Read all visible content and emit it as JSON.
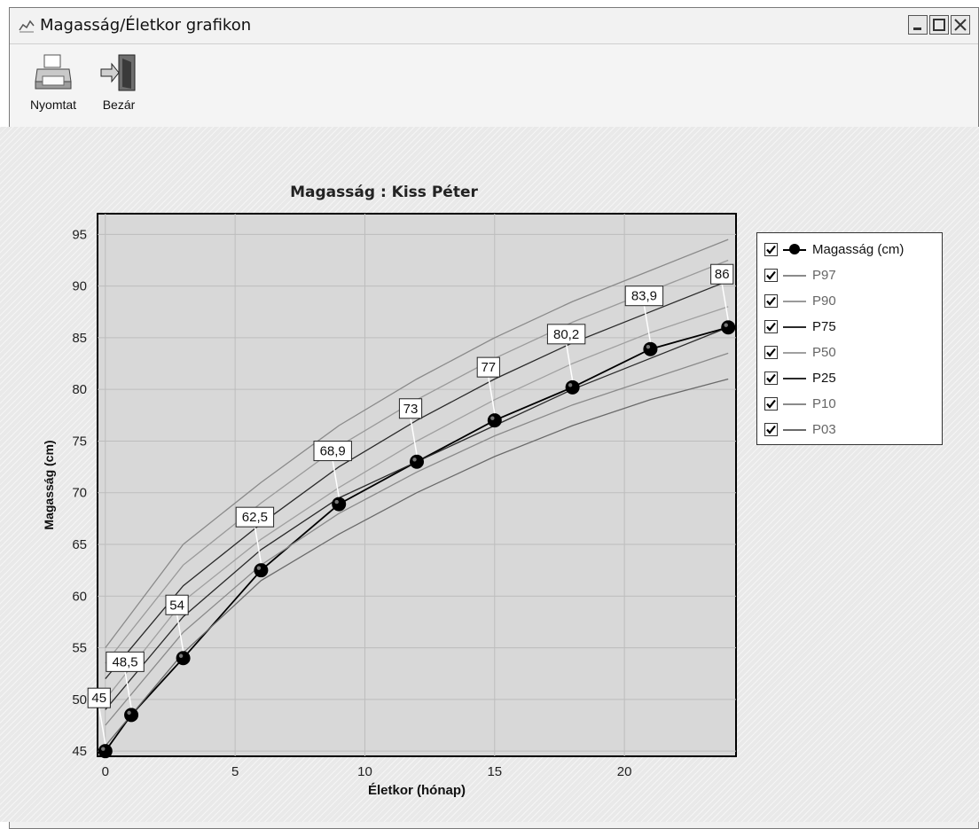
{
  "window": {
    "title": "Magasság/Életkor grafikon"
  },
  "toolbar": {
    "print_label": "Nyomtat",
    "close_label": "Bezár"
  },
  "chart_data": {
    "type": "line",
    "title": "Magasság : Kiss Péter",
    "xlabel": "Életkor (hónap)",
    "ylabel": "Magasság (cm)",
    "xlim": [
      -0.3,
      24.3
    ],
    "ylim": [
      44.5,
      97
    ],
    "xticks": [
      0,
      5,
      10,
      15,
      20
    ],
    "yticks": [
      45,
      50,
      55,
      60,
      65,
      70,
      75,
      80,
      85,
      90,
      95
    ],
    "grid": true,
    "legend_position": "right",
    "series": [
      {
        "name": "Magasság (cm)",
        "color": "#000000",
        "marker": "circle",
        "x": [
          0,
          1,
          3,
          6,
          9,
          12,
          15,
          18,
          21,
          24
        ],
        "y": [
          45,
          48.5,
          54,
          62.5,
          68.9,
          73,
          77,
          80.2,
          83.9,
          86
        ],
        "data_labels": [
          "45",
          "48,5",
          "54",
          "62,5",
          "68,9",
          "73",
          "77",
          "80,2",
          "83,9",
          "86"
        ]
      },
      {
        "name": "P97",
        "color": "#8a8a8a",
        "x": [
          0,
          3,
          6,
          9,
          12,
          15,
          18,
          21,
          24
        ],
        "y": [
          55,
          65,
          71,
          76.5,
          81,
          85,
          88.5,
          91.5,
          94.5
        ]
      },
      {
        "name": "P90",
        "color": "#9a9a9a",
        "x": [
          0,
          3,
          6,
          9,
          12,
          15,
          18,
          21,
          24
        ],
        "y": [
          53.5,
          63,
          69,
          74.5,
          79,
          83,
          86.5,
          89.5,
          92.5
        ]
      },
      {
        "name": "P75",
        "color": "#2a2a2a",
        "x": [
          0,
          3,
          6,
          9,
          12,
          15,
          18,
          21,
          24
        ],
        "y": [
          52,
          61,
          67,
          72.5,
          77,
          81,
          84.5,
          87.5,
          90.5
        ]
      },
      {
        "name": "P50",
        "color": "#a0a0a0",
        "x": [
          0,
          3,
          6,
          9,
          12,
          15,
          18,
          21,
          24
        ],
        "y": [
          50,
          59.5,
          65.5,
          70.5,
          75,
          79,
          82.5,
          85.5,
          88
        ]
      },
      {
        "name": "P25",
        "color": "#2a2a2a",
        "x": [
          0,
          3,
          6,
          9,
          12,
          15,
          18,
          21,
          24
        ],
        "y": [
          49,
          58,
          64.5,
          69.5,
          73,
          76.5,
          80,
          83,
          86
        ]
      },
      {
        "name": "P10",
        "color": "#8a8a8a",
        "x": [
          0,
          3,
          6,
          9,
          12,
          15,
          18,
          21,
          24
        ],
        "y": [
          47.5,
          56.5,
          63,
          68,
          72,
          75.5,
          78.5,
          81,
          83.5
        ]
      },
      {
        "name": "P03",
        "color": "#6a6a6a",
        "x": [
          0,
          3,
          6,
          9,
          12,
          15,
          18,
          21,
          24
        ],
        "y": [
          45.5,
          54.5,
          61.5,
          66,
          70,
          73.5,
          76.5,
          79,
          81
        ]
      }
    ]
  },
  "legend": {
    "items": [
      {
        "label": "Magasság (cm)",
        "checked": true,
        "color": "#000000"
      },
      {
        "label": "P97",
        "checked": true,
        "color": "#8a8a8a"
      },
      {
        "label": "P90",
        "checked": true,
        "color": "#9a9a9a"
      },
      {
        "label": "P75",
        "checked": true,
        "color": "#2a2a2a"
      },
      {
        "label": "P50",
        "checked": true,
        "color": "#a0a0a0"
      },
      {
        "label": "P25",
        "checked": true,
        "color": "#2a2a2a"
      },
      {
        "label": "P10",
        "checked": true,
        "color": "#8a8a8a"
      },
      {
        "label": "P03",
        "checked": true,
        "color": "#6a6a6a"
      }
    ]
  }
}
